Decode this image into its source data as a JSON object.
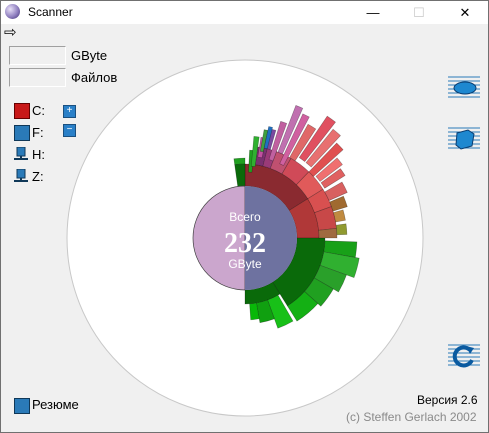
{
  "window": {
    "title": "Scanner",
    "min_glyph": "—",
    "max_glyph": "☐",
    "close_glyph": "✕"
  },
  "menu": {
    "arrow_glyph": "⇨",
    "arrow_icon": "arrow-right-icon"
  },
  "stats": {
    "size_value": "",
    "size_unit": "GByte",
    "files_value": "",
    "files_unit": "Файлов"
  },
  "drives": [
    {
      "label": "C:",
      "icon": "local-drive-red-icon"
    },
    {
      "label": "F:",
      "icon": "local-drive-blue-icon"
    },
    {
      "label": "H:",
      "icon": "network-drive-icon"
    },
    {
      "label": "Z:",
      "icon": "network-drive-icon"
    }
  ],
  "zoom": {
    "plus": "+",
    "minus": "−"
  },
  "center": {
    "line1": "Всего",
    "value": "232",
    "unit": "GByte"
  },
  "footer": {
    "resume_label": "Резюме",
    "version": "Версия 2.6",
    "copyright": "(c) Steffen Gerlach 2002"
  },
  "colors": {
    "center_fill": "#cba6cd",
    "center_shade": "#6e72a0",
    "ring_red": "#d85050",
    "ring_green": "#18a018",
    "ring_dark_green": "#0a6a0a",
    "ring_pink": "#c060a0",
    "ring_brown": "#8a6a20"
  }
}
